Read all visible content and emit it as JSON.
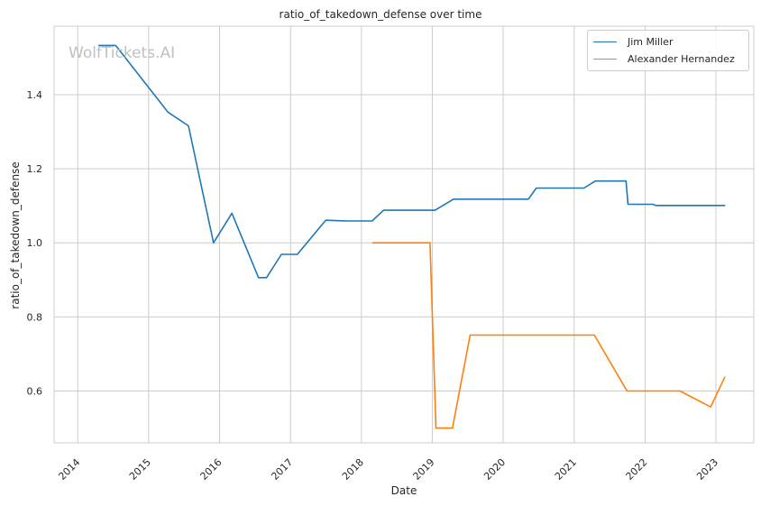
{
  "watermark": "WolfTickets.AI",
  "chart_data": {
    "type": "line",
    "title": "ratio_of_takedown_defense over time",
    "xlabel": "Date",
    "ylabel": "ratio_of_takedown_defense",
    "x_ticks": [
      "2014",
      "2015",
      "2016",
      "2017",
      "2018",
      "2019",
      "2020",
      "2021",
      "2022",
      "2023"
    ],
    "y_ticks": [
      "0.6",
      "0.8",
      "1.0",
      "1.2",
      "1.4"
    ],
    "xlim": [
      "2013-09-01",
      "2023-07-15"
    ],
    "ylim": [
      0.46,
      1.585
    ],
    "grid": true,
    "legend": "top-right",
    "series": [
      {
        "name": "Jim Miller",
        "color": "#1f77b4",
        "points": [
          [
            "2014-04-20",
            1.533
          ],
          [
            "2014-07-15",
            1.533
          ],
          [
            "2015-04-10",
            1.353
          ],
          [
            "2015-07-25",
            1.316
          ],
          [
            "2015-12-01",
            1.0
          ],
          [
            "2016-03-05",
            1.08
          ],
          [
            "2016-07-20",
            0.906
          ],
          [
            "2016-08-30",
            0.906
          ],
          [
            "2016-11-15",
            0.969
          ],
          [
            "2017-02-05",
            0.969
          ],
          [
            "2017-07-01",
            1.061
          ],
          [
            "2017-10-10",
            1.059
          ],
          [
            "2018-02-25",
            1.059
          ],
          [
            "2018-04-25",
            1.088
          ],
          [
            "2019-01-15",
            1.088
          ],
          [
            "2019-04-20",
            1.118
          ],
          [
            "2020-05-10",
            1.118
          ],
          [
            "2020-06-20",
            1.148
          ],
          [
            "2021-02-20",
            1.148
          ],
          [
            "2021-04-20",
            1.167
          ],
          [
            "2021-09-25",
            1.167
          ],
          [
            "2021-10-05",
            1.104
          ],
          [
            "2022-02-10",
            1.104
          ],
          [
            "2022-02-25",
            1.101
          ],
          [
            "2023-02-15",
            1.101
          ]
        ]
      },
      {
        "name": "Alexander Hernandez",
        "color": "#ff7f0e",
        "points": [
          [
            "2018-03-01",
            1.0
          ],
          [
            "2018-12-20",
            1.0
          ],
          [
            "2019-01-20",
            0.5
          ],
          [
            "2019-04-15",
            0.5
          ],
          [
            "2019-07-15",
            0.751
          ],
          [
            "2021-04-15",
            0.751
          ],
          [
            "2021-09-30",
            0.6
          ],
          [
            "2022-06-30",
            0.6
          ],
          [
            "2022-12-05",
            0.557
          ],
          [
            "2023-02-15",
            0.637
          ]
        ]
      }
    ]
  }
}
